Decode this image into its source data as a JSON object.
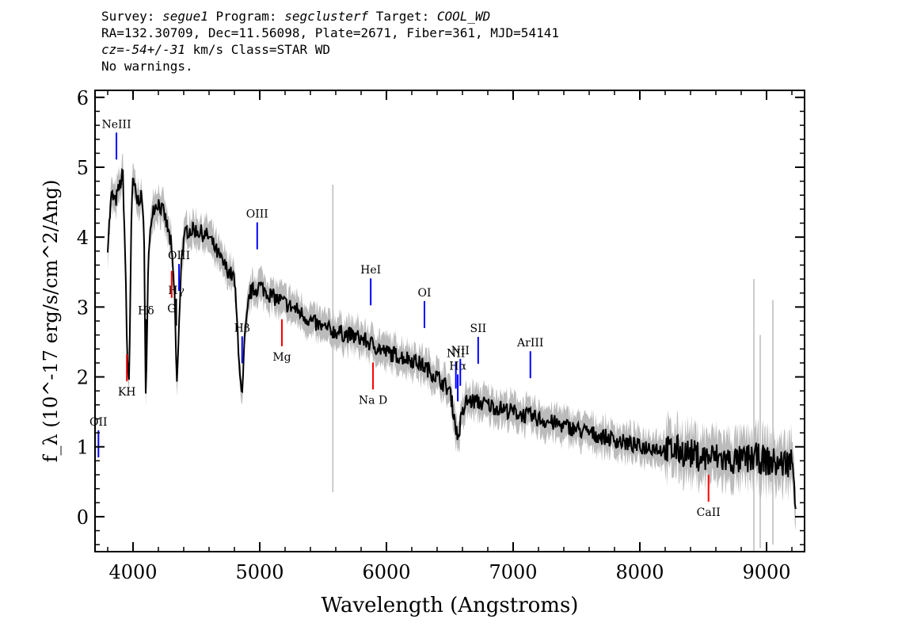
{
  "header": {
    "survey_label": "Survey: ",
    "survey": "segue1",
    "program_label": " Program: ",
    "program": "segclusterf",
    "target_label": " Target: ",
    "target": "COOL_WD",
    "line2": "RA=132.30709, Dec=11.56098, Plate=2671, Fiber=361, MJD=54141",
    "cz_label": "cz=",
    "cz": "-54+/-31",
    "cz_rest": " km/s Class=STAR WD",
    "line4": "No warnings."
  },
  "chart_data": {
    "type": "line",
    "xlabel": "Wavelength (Angstroms)",
    "ylabel": "f_λ (10^-17 erg/s/cm^2/Ang)",
    "xlim": [
      3700,
      9300
    ],
    "ylim": [
      -0.5,
      6.1
    ],
    "xticks": [
      4000,
      5000,
      6000,
      7000,
      8000,
      9000
    ],
    "yticks": [
      0,
      1,
      2,
      3,
      4,
      5,
      6
    ],
    "grid": false,
    "series": [
      {
        "color": "#000000",
        "points": [
          [
            3800,
            3.9
          ],
          [
            3830,
            4.6
          ],
          [
            3860,
            4.5
          ],
          [
            3890,
            4.7
          ],
          [
            3920,
            4.9
          ],
          [
            3940,
            3.6
          ],
          [
            3955,
            2.2
          ],
          [
            3970,
            1.95
          ],
          [
            3985,
            4.1
          ],
          [
            4000,
            4.85
          ],
          [
            4030,
            4.5
          ],
          [
            4060,
            4.6
          ],
          [
            4085,
            4.3
          ],
          [
            4100,
            1.7
          ],
          [
            4120,
            3.6
          ],
          [
            4150,
            4.4
          ],
          [
            4200,
            4.5
          ],
          [
            4250,
            4.3
          ],
          [
            4300,
            3.9
          ],
          [
            4330,
            3.1
          ],
          [
            4345,
            1.85
          ],
          [
            4360,
            2.5
          ],
          [
            4380,
            3.7
          ],
          [
            4420,
            4.1
          ],
          [
            4500,
            4.1
          ],
          [
            4600,
            4.0
          ],
          [
            4700,
            3.65
          ],
          [
            4800,
            3.4
          ],
          [
            4830,
            2.5
          ],
          [
            4860,
            1.6
          ],
          [
            4880,
            2.5
          ],
          [
            4920,
            3.2
          ],
          [
            5000,
            3.3
          ],
          [
            5100,
            3.15
          ],
          [
            5200,
            3.05
          ],
          [
            5300,
            2.95
          ],
          [
            5400,
            2.8
          ],
          [
            5500,
            2.7
          ],
          [
            5600,
            2.65
          ],
          [
            5700,
            2.6
          ],
          [
            5800,
            2.55
          ],
          [
            5900,
            2.45
          ],
          [
            6000,
            2.35
          ],
          [
            6100,
            2.3
          ],
          [
            6200,
            2.25
          ],
          [
            6300,
            2.15
          ],
          [
            6400,
            2.0
          ],
          [
            6500,
            1.8
          ],
          [
            6530,
            1.5
          ],
          [
            6563,
            1.1
          ],
          [
            6590,
            1.4
          ],
          [
            6630,
            1.65
          ],
          [
            6700,
            1.65
          ],
          [
            6800,
            1.6
          ],
          [
            6900,
            1.55
          ],
          [
            7000,
            1.5
          ],
          [
            7100,
            1.45
          ],
          [
            7200,
            1.4
          ],
          [
            7300,
            1.35
          ],
          [
            7400,
            1.3
          ],
          [
            7500,
            1.25
          ],
          [
            7600,
            1.2
          ],
          [
            7700,
            1.15
          ],
          [
            7800,
            1.1
          ],
          [
            7900,
            1.05
          ],
          [
            8000,
            1.0
          ],
          [
            8100,
            1.0
          ],
          [
            8200,
            0.95
          ],
          [
            8300,
            0.95
          ],
          [
            8400,
            0.9
          ],
          [
            8500,
            0.85
          ],
          [
            8600,
            0.85
          ],
          [
            8700,
            0.8
          ],
          [
            8800,
            0.8
          ],
          [
            8900,
            0.85
          ],
          [
            9000,
            0.8
          ],
          [
            9100,
            0.75
          ],
          [
            9200,
            0.8
          ],
          [
            9230,
            0.3
          ]
        ]
      }
    ],
    "lines": [
      {
        "label": "OII",
        "x": 3727,
        "color": "#0000ff",
        "kind": "emission"
      },
      {
        "label": "NeIII",
        "x": 3869,
        "color": "#0000ff",
        "kind": "emission"
      },
      {
        "label": "Hδ",
        "x": 4102,
        "color": "#000000",
        "kind": "balmer"
      },
      {
        "label": "Hγ",
        "x": 4341,
        "color": "#000000",
        "kind": "balmer"
      },
      {
        "label": "OIII",
        "x": 4363,
        "color": "#0000ff",
        "kind": "emission"
      },
      {
        "label": "Hβ",
        "x": 4861,
        "color": "#0000ff",
        "kind": "emission"
      },
      {
        "label": "OIII",
        "x": 4980,
        "color": "#0000ff",
        "kind": "emission"
      },
      {
        "label": "HeI",
        "x": 5876,
        "color": "#0000ff",
        "kind": "emission"
      },
      {
        "label": "OI",
        "x": 6300,
        "color": "#0000ff",
        "kind": "emission"
      },
      {
        "label": "NII",
        "x": 6548,
        "color": "#0000ff",
        "kind": "emission"
      },
      {
        "label": "Hα",
        "x": 6563,
        "color": "#0000ff",
        "kind": "emission"
      },
      {
        "label": "NII",
        "x": 6583,
        "color": "#0000ff",
        "kind": "emission"
      },
      {
        "label": "SII",
        "x": 6724,
        "color": "#0000ff",
        "kind": "emission"
      },
      {
        "label": "ArIII",
        "x": 7136,
        "color": "#0000ff",
        "kind": "emission"
      },
      {
        "label": "KH",
        "x": 3951,
        "color": "#ff0000",
        "kind": "absorption"
      },
      {
        "label": "G",
        "x": 4305,
        "color": "#ff0000",
        "kind": "absorption"
      },
      {
        "label": "Mg",
        "x": 5175,
        "color": "#ff0000",
        "kind": "absorption"
      },
      {
        "label": "Na D",
        "x": 5894,
        "color": "#ff0000",
        "kind": "absorption"
      },
      {
        "label": "CaII",
        "x": 8542,
        "color": "#ff0000",
        "kind": "absorption"
      }
    ],
    "colors": {
      "spectrum": "#000000",
      "error": "#bbbbbb",
      "emission": "#0000ff",
      "absorption": "#ff0000"
    }
  }
}
